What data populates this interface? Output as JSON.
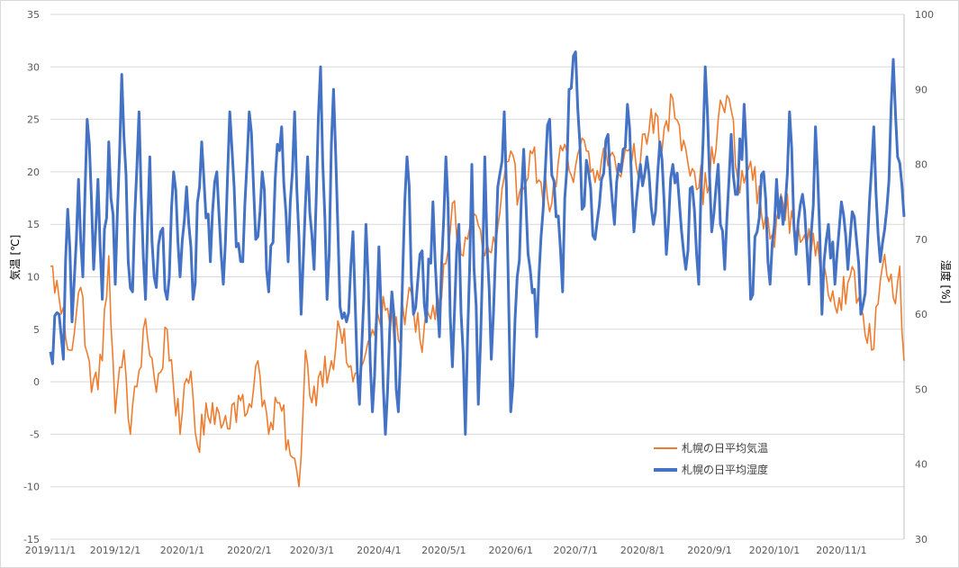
{
  "chart_data": {
    "type": "line",
    "x_start": "2019-11-01",
    "x_end": "2020-11-30",
    "x_ticks": [
      "2019/11/1",
      "2019/12/1",
      "2020/1/1",
      "2020/2/1",
      "2020/3/1",
      "2020/4/1",
      "2020/5/1",
      "2020/6/1",
      "2020/7/1",
      "2020/8/1",
      "2020/9/1",
      "2020/10/1",
      "2020/11/1"
    ],
    "y_left": {
      "label": "気温 [℃]",
      "ylim": [
        -15,
        35
      ],
      "ticks": [
        35,
        30,
        25,
        20,
        15,
        10,
        5,
        0,
        -5,
        -10,
        -15
      ]
    },
    "y_right": {
      "label": "湿度 [%]",
      "ylim": [
        30,
        100
      ],
      "ticks": [
        100,
        90,
        80,
        70,
        60,
        50,
        40,
        30
      ]
    },
    "grid": true,
    "legend_position": "bottom-right",
    "series": [
      {
        "name": "札幌の日平均気温",
        "axis": "left",
        "color": "#ED7D31",
        "points": [
          [
            "2019-11-01",
            11
          ],
          [
            "2019-11-05",
            8
          ],
          [
            "2019-11-10",
            3
          ],
          [
            "2019-11-15",
            9
          ],
          [
            "2019-11-20",
            -1
          ],
          [
            "2019-11-25",
            2
          ],
          [
            "2019-11-28",
            12
          ],
          [
            "2019-12-01",
            -3
          ],
          [
            "2019-12-05",
            3
          ],
          [
            "2019-12-08",
            -5
          ],
          [
            "2019-12-15",
            6
          ],
          [
            "2019-12-20",
            -1
          ],
          [
            "2019-12-25",
            5
          ],
          [
            "2019-12-31",
            -5
          ],
          [
            "2020-01-01",
            -3
          ],
          [
            "2020-01-05",
            1
          ],
          [
            "2020-01-08",
            -6
          ],
          [
            "2020-01-15",
            -2
          ],
          [
            "2020-01-20",
            -4
          ],
          [
            "2020-01-25",
            -2
          ],
          [
            "2020-01-31",
            -3
          ],
          [
            "2020-02-05",
            2
          ],
          [
            "2020-02-10",
            -5
          ],
          [
            "2020-02-15",
            -2
          ],
          [
            "2020-02-20",
            -7
          ],
          [
            "2020-02-24",
            -10
          ],
          [
            "2020-02-27",
            3
          ],
          [
            "2020-03-01",
            -2
          ],
          [
            "2020-03-05",
            1
          ],
          [
            "2020-03-10",
            2
          ],
          [
            "2020-03-14",
            5
          ],
          [
            "2020-03-20",
            0
          ],
          [
            "2020-03-25",
            2
          ],
          [
            "2020-04-01",
            6
          ],
          [
            "2020-04-05",
            7
          ],
          [
            "2020-04-10",
            4
          ],
          [
            "2020-04-15",
            9
          ],
          [
            "2020-04-20",
            4
          ],
          [
            "2020-04-25",
            6
          ],
          [
            "2020-04-30",
            8
          ],
          [
            "2020-05-05",
            17
          ],
          [
            "2020-05-10",
            12
          ],
          [
            "2020-05-15",
            16
          ],
          [
            "2020-05-20",
            12
          ],
          [
            "2020-05-25",
            13
          ],
          [
            "2020-05-31",
            21
          ],
          [
            "2020-06-05",
            18
          ],
          [
            "2020-06-10",
            22
          ],
          [
            "2020-06-15",
            19
          ],
          [
            "2020-06-20",
            17
          ],
          [
            "2020-06-25",
            22
          ],
          [
            "2020-06-30",
            19
          ],
          [
            "2020-07-05",
            23
          ],
          [
            "2020-07-10",
            19
          ],
          [
            "2020-07-15",
            22
          ],
          [
            "2020-07-20",
            20
          ],
          [
            "2020-07-25",
            22
          ],
          [
            "2020-07-31",
            21
          ],
          [
            "2020-08-05",
            26
          ],
          [
            "2020-08-10",
            22
          ],
          [
            "2020-08-15",
            27
          ],
          [
            "2020-08-20",
            23
          ],
          [
            "2020-08-25",
            20
          ],
          [
            "2020-08-31",
            18
          ],
          [
            "2020-09-05",
            25
          ],
          [
            "2020-09-10",
            27
          ],
          [
            "2020-09-15",
            18
          ],
          [
            "2020-09-20",
            21
          ],
          [
            "2020-09-25",
            16
          ],
          [
            "2020-09-30",
            14
          ],
          [
            "2020-10-05",
            17
          ],
          [
            "2020-10-10",
            15
          ],
          [
            "2020-10-15",
            14
          ],
          [
            "2020-10-20",
            12
          ],
          [
            "2020-10-25",
            10
          ],
          [
            "2020-10-31",
            8
          ],
          [
            "2020-11-05",
            10
          ],
          [
            "2020-11-10",
            7
          ],
          [
            "2020-11-15",
            3
          ],
          [
            "2020-11-20",
            11
          ],
          [
            "2020-11-25",
            8
          ],
          [
            "2020-11-28",
            11
          ],
          [
            "2020-11-30",
            2
          ]
        ]
      },
      {
        "name": "札幌の日平均湿度",
        "axis": "right",
        "color": "#4472C4",
        "points": [
          [
            "2019-11-01",
            55
          ],
          [
            "2019-11-05",
            60
          ],
          [
            "2019-11-07",
            54
          ],
          [
            "2019-11-09",
            74
          ],
          [
            "2019-11-11",
            59
          ],
          [
            "2019-11-14",
            78
          ],
          [
            "2019-11-16",
            65
          ],
          [
            "2019-11-18",
            86
          ],
          [
            "2019-11-21",
            66
          ],
          [
            "2019-11-23",
            78
          ],
          [
            "2019-11-25",
            62
          ],
          [
            "2019-11-28",
            83
          ],
          [
            "2019-12-01",
            64
          ],
          [
            "2019-12-04",
            92
          ],
          [
            "2019-12-07",
            67
          ],
          [
            "2019-12-09",
            63
          ],
          [
            "2019-12-12",
            87
          ],
          [
            "2019-12-15",
            62
          ],
          [
            "2019-12-17",
            81
          ],
          [
            "2019-12-19",
            65
          ],
          [
            "2019-12-22",
            71
          ],
          [
            "2019-12-25",
            62
          ],
          [
            "2019-12-28",
            79
          ],
          [
            "2019-12-31",
            65
          ],
          [
            "2020-01-03",
            77
          ],
          [
            "2020-01-06",
            62
          ],
          [
            "2020-01-10",
            83
          ],
          [
            "2020-01-14",
            67
          ],
          [
            "2020-01-17",
            79
          ],
          [
            "2020-01-20",
            64
          ],
          [
            "2020-01-23",
            87
          ],
          [
            "2020-01-26",
            69
          ],
          [
            "2020-01-29",
            67
          ],
          [
            "2020-02-01",
            87
          ],
          [
            "2020-02-04",
            70
          ],
          [
            "2020-02-07",
            79
          ],
          [
            "2020-02-10",
            63
          ],
          [
            "2020-02-13",
            78
          ],
          [
            "2020-02-16",
            85
          ],
          [
            "2020-02-19",
            67
          ],
          [
            "2020-02-22",
            87
          ],
          [
            "2020-02-25",
            60
          ],
          [
            "2020-02-28",
            81
          ],
          [
            "2020-03-02",
            66
          ],
          [
            "2020-03-05",
            93
          ],
          [
            "2020-03-08",
            62
          ],
          [
            "2020-03-11",
            90
          ],
          [
            "2020-03-14",
            61
          ],
          [
            "2020-03-17",
            59
          ],
          [
            "2020-03-20",
            71
          ],
          [
            "2020-03-23",
            48
          ],
          [
            "2020-03-26",
            72
          ],
          [
            "2020-03-29",
            47
          ],
          [
            "2020-04-01",
            69
          ],
          [
            "2020-04-04",
            44
          ],
          [
            "2020-04-07",
            63
          ],
          [
            "2020-04-10",
            47
          ],
          [
            "2020-04-14",
            81
          ],
          [
            "2020-04-17",
            60
          ],
          [
            "2020-04-20",
            68
          ],
          [
            "2020-04-23",
            59
          ],
          [
            "2020-04-26",
            75
          ],
          [
            "2020-04-29",
            57
          ],
          [
            "2020-05-02",
            81
          ],
          [
            "2020-05-05",
            53
          ],
          [
            "2020-05-08",
            72
          ],
          [
            "2020-05-11",
            44
          ],
          [
            "2020-05-14",
            80
          ],
          [
            "2020-05-17",
            48
          ],
          [
            "2020-05-20",
            81
          ],
          [
            "2020-05-23",
            54
          ],
          [
            "2020-05-26",
            77
          ],
          [
            "2020-05-29",
            87
          ],
          [
            "2020-06-01",
            47
          ],
          [
            "2020-06-04",
            65
          ],
          [
            "2020-06-07",
            82
          ],
          [
            "2020-06-10",
            66
          ],
          [
            "2020-06-13",
            57
          ],
          [
            "2020-06-16",
            74
          ],
          [
            "2020-06-19",
            86
          ],
          [
            "2020-06-22",
            73
          ],
          [
            "2020-06-25",
            63
          ],
          [
            "2020-06-28",
            90
          ],
          [
            "2020-07-01",
            95
          ],
          [
            "2020-07-04",
            74
          ],
          [
            "2020-07-07",
            79
          ],
          [
            "2020-07-10",
            70
          ],
          [
            "2020-07-13",
            78
          ],
          [
            "2020-07-16",
            84
          ],
          [
            "2020-07-19",
            72
          ],
          [
            "2020-07-22",
            79
          ],
          [
            "2020-07-25",
            88
          ],
          [
            "2020-07-28",
            71
          ],
          [
            "2020-07-31",
            80
          ],
          [
            "2020-08-03",
            81
          ],
          [
            "2020-08-06",
            72
          ],
          [
            "2020-08-09",
            83
          ],
          [
            "2020-08-12",
            68
          ],
          [
            "2020-08-15",
            80
          ],
          [
            "2020-08-18",
            75
          ],
          [
            "2020-08-21",
            66
          ],
          [
            "2020-08-24",
            77
          ],
          [
            "2020-08-27",
            64
          ],
          [
            "2020-08-30",
            93
          ],
          [
            "2020-09-02",
            71
          ],
          [
            "2020-09-05",
            80
          ],
          [
            "2020-09-08",
            66
          ],
          [
            "2020-09-11",
            84
          ],
          [
            "2020-09-14",
            76
          ],
          [
            "2020-09-17",
            88
          ],
          [
            "2020-09-20",
            62
          ],
          [
            "2020-09-23",
            71
          ],
          [
            "2020-09-26",
            79
          ],
          [
            "2020-09-29",
            64
          ],
          [
            "2020-10-02",
            78
          ],
          [
            "2020-10-05",
            72
          ],
          [
            "2020-10-08",
            87
          ],
          [
            "2020-10-11",
            68
          ],
          [
            "2020-10-14",
            76
          ],
          [
            "2020-10-17",
            64
          ],
          [
            "2020-10-20",
            85
          ],
          [
            "2020-10-23",
            60
          ],
          [
            "2020-10-26",
            72
          ],
          [
            "2020-10-29",
            64
          ],
          [
            "2020-11-01",
            75
          ],
          [
            "2020-11-04",
            66
          ],
          [
            "2020-11-07",
            73
          ],
          [
            "2020-11-10",
            60
          ],
          [
            "2020-11-13",
            69
          ],
          [
            "2020-11-16",
            85
          ],
          [
            "2020-11-19",
            67
          ],
          [
            "2020-11-22",
            74
          ],
          [
            "2020-11-25",
            94
          ],
          [
            "2020-11-27",
            81
          ],
          [
            "2020-11-30",
            73
          ]
        ]
      }
    ]
  }
}
